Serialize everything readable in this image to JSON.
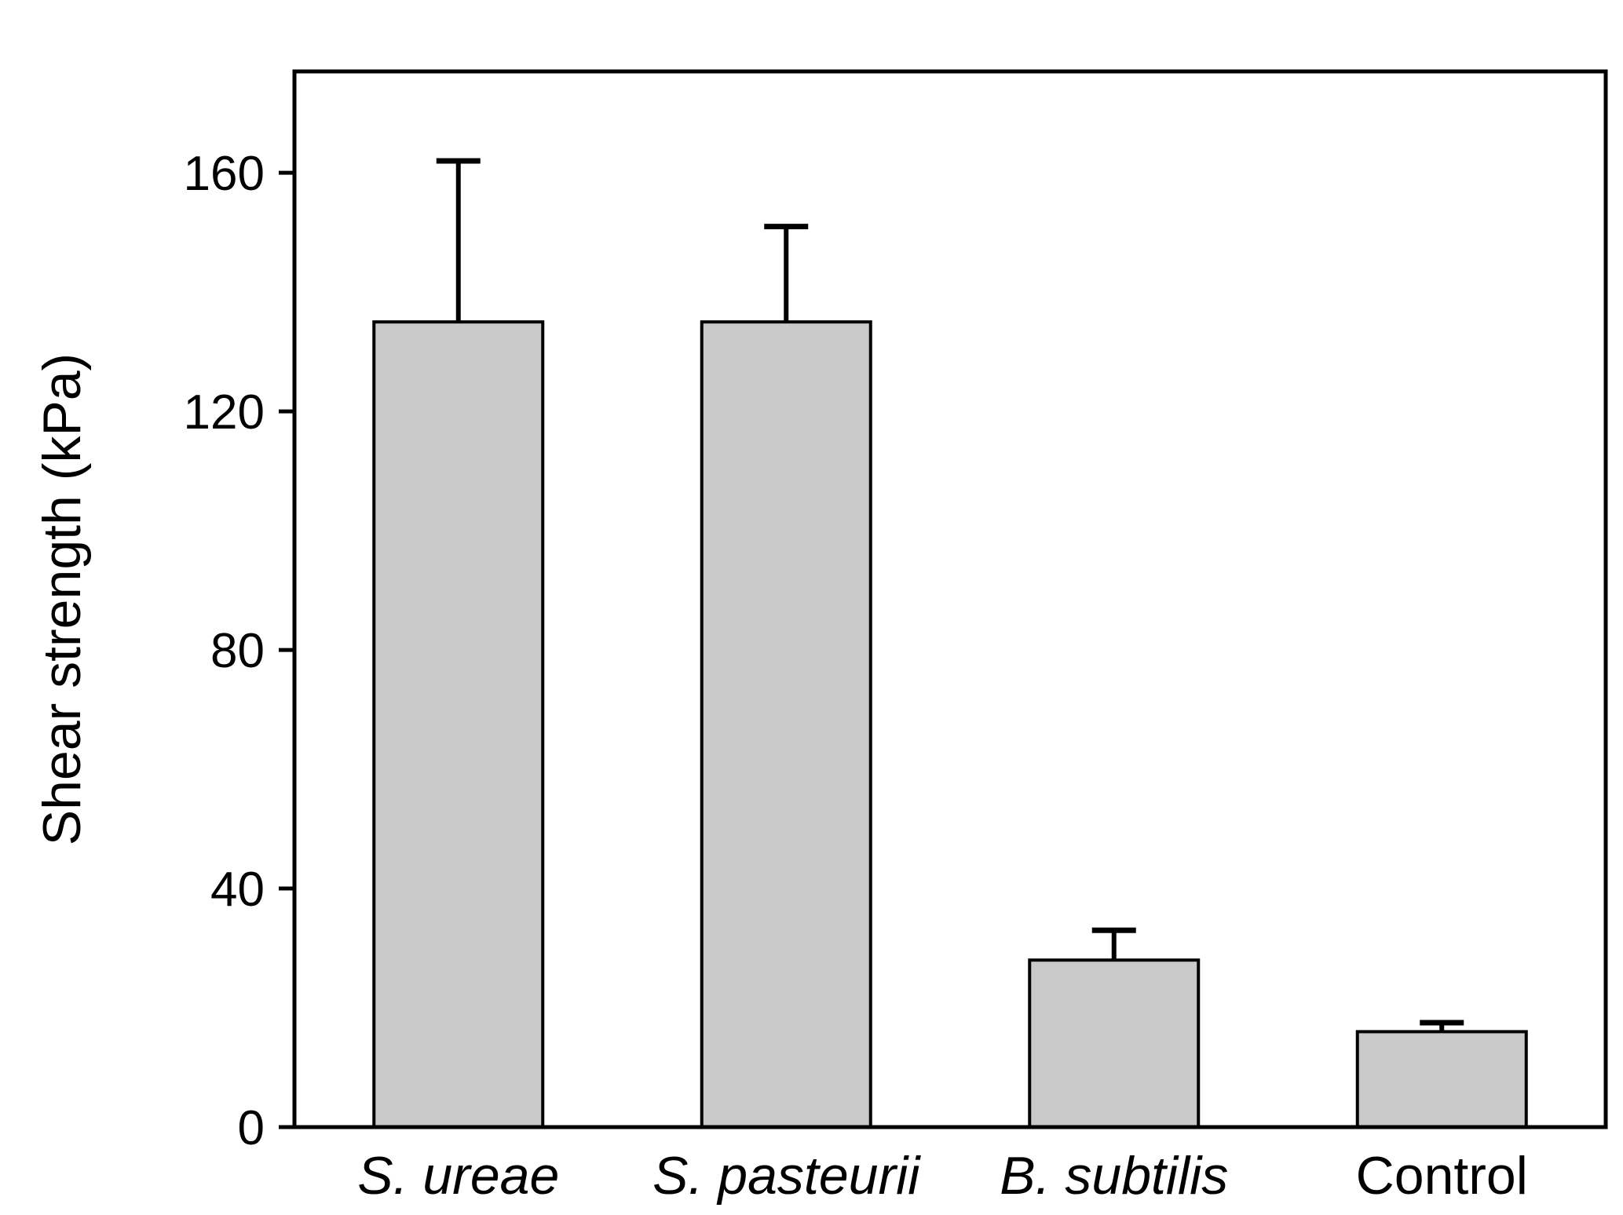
{
  "chart_data": {
    "type": "bar",
    "title": "",
    "xlabel": "",
    "ylabel": "Shear strength (kPa)",
    "categories": [
      "S. ureae",
      "S. pasteurii",
      "B. subtilis",
      "Control"
    ],
    "categories_italic": [
      true,
      true,
      true,
      false
    ],
    "values": [
      135,
      135,
      28,
      16
    ],
    "errors_upper": [
      27,
      16,
      5,
      1.5
    ],
    "error_bars": "upper-only",
    "yticks": [
      0,
      40,
      80,
      120,
      160
    ],
    "ylim": [
      0,
      177
    ],
    "grid": false,
    "legend": "none",
    "colors": {
      "bar_fill": "#c9c9c9",
      "bar_border": "#000000",
      "axis": "#000000",
      "text": "#000000",
      "background": "#ffffff"
    }
  }
}
